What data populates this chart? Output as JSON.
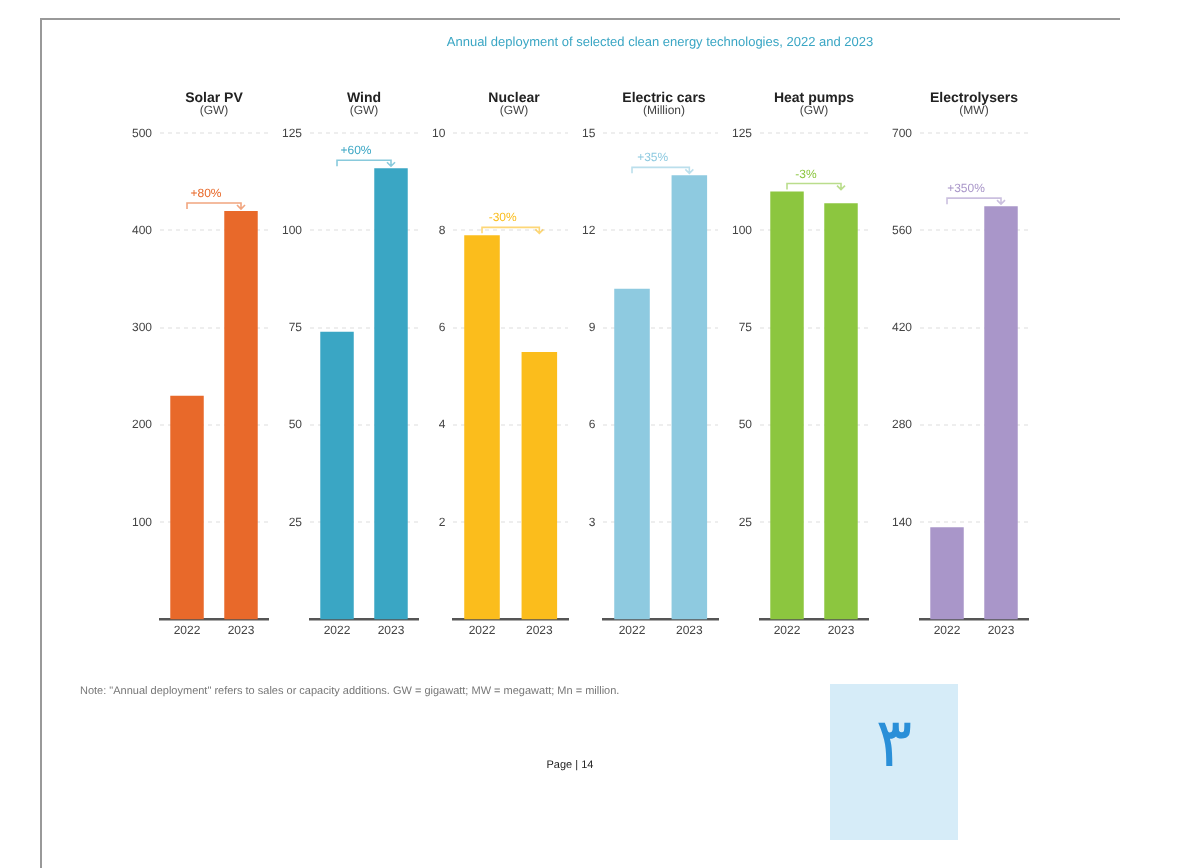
{
  "chart_data": [
    {
      "type": "bar",
      "title": "Solar PV",
      "subtitle": "(GW)",
      "categories": [
        "2022",
        "2023"
      ],
      "values": [
        230,
        420
      ],
      "color": "#e8692a",
      "ylim": [
        0,
        500
      ],
      "yticks": [
        100,
        200,
        300,
        400,
        500
      ],
      "grid": "y",
      "annotations": [
        "+80%"
      ]
    },
    {
      "type": "bar",
      "title": "Wind",
      "subtitle": "(GW)",
      "categories": [
        "2022",
        "2023"
      ],
      "values": [
        74,
        116
      ],
      "color": "#3aa6c4",
      "ylim": [
        0,
        125
      ],
      "yticks": [
        25,
        50,
        75,
        100,
        125
      ],
      "grid": "y",
      "annotations": [
        "+60%"
      ]
    },
    {
      "type": "bar",
      "title": "Nuclear",
      "subtitle": "(GW)",
      "categories": [
        "2022",
        "2023"
      ],
      "values": [
        7.9,
        5.5
      ],
      "color": "#fbbd1c",
      "ylim": [
        0,
        10
      ],
      "yticks": [
        2,
        4,
        6,
        8,
        10
      ],
      "grid": "y",
      "annotations": [
        "-30%"
      ]
    },
    {
      "type": "bar",
      "title": "Electric cars",
      "subtitle": "(Million)",
      "categories": [
        "2022",
        "2023"
      ],
      "values": [
        10.2,
        13.7
      ],
      "color": "#8ecae0",
      "ylim": [
        0,
        15
      ],
      "yticks": [
        3,
        6,
        9,
        12,
        15
      ],
      "grid": "y",
      "annotations": [
        "+35%"
      ]
    },
    {
      "type": "bar",
      "title": "Heat pumps",
      "subtitle": "(GW)",
      "categories": [
        "2022",
        "2023"
      ],
      "values": [
        110,
        107
      ],
      "color": "#8cc63f",
      "ylim": [
        0,
        125
      ],
      "yticks": [
        25,
        50,
        75,
        100,
        125
      ],
      "grid": "y",
      "annotations": [
        "-3%"
      ]
    },
    {
      "type": "bar",
      "title": "Electrolysers",
      "subtitle": "(MW)",
      "categories": [
        "2022",
        "2023"
      ],
      "values": [
        133,
        595
      ],
      "color": "#a996c9",
      "ylim": [
        0,
        700
      ],
      "yticks": [
        140,
        280,
        420,
        560,
        700
      ],
      "grid": "y",
      "annotations": [
        "+350%"
      ]
    },
    {
      "type": "other",
      "title": "Annual deployment of selected clean energy technologies, 2022 and 2023",
      "annotations": [
        "Note: \"Annual deployment\" refers to sales or capacity additions. GW = gigawatt; MW = megawatt; Mn = million.",
        "Page | 14",
        "٣"
      ]
    }
  ]
}
